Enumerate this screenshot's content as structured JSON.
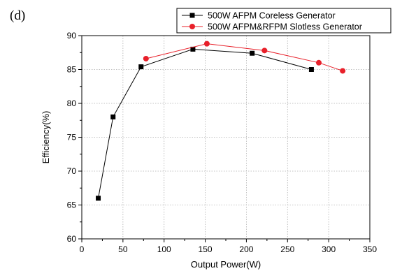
{
  "chart_data": {
    "type": "line",
    "panel_label": "(d)",
    "title": "",
    "xlabel": "Output Power(W)",
    "ylabel": "Efficiency(%)",
    "xlim": [
      0,
      350
    ],
    "ylim": [
      60,
      90
    ],
    "xticks": [
      0,
      50,
      100,
      150,
      200,
      250,
      300,
      350
    ],
    "yticks": [
      60,
      65,
      70,
      75,
      80,
      85,
      90
    ],
    "grid": true,
    "legend_position": "top-right",
    "series": [
      {
        "name": "500W AFPM Coreless Generator",
        "marker": "square",
        "color": "#000000",
        "x": [
          20,
          38,
          72,
          135,
          207,
          279
        ],
        "y": [
          66.0,
          78.0,
          85.4,
          88.0,
          87.4,
          85.0
        ]
      },
      {
        "name": "500W AFPM&RFPM Slotless Generator",
        "marker": "circle",
        "color": "#e8202a",
        "x": [
          78,
          152,
          222,
          288,
          317
        ],
        "y": [
          86.6,
          88.8,
          87.8,
          86.0,
          84.8
        ]
      }
    ]
  }
}
